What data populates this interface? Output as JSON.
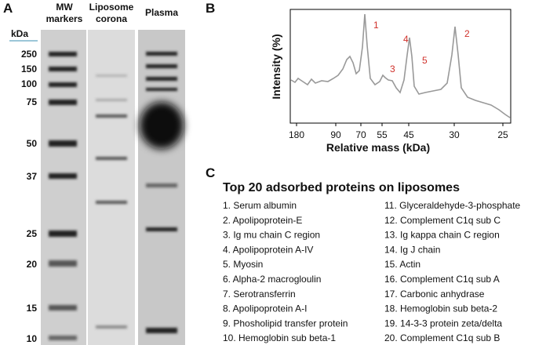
{
  "panel_a": {
    "label": "A",
    "lanes": [
      [
        "MW",
        "markers"
      ],
      [
        "Liposome",
        "corona"
      ],
      [
        "Plasma"
      ]
    ],
    "unit": "kDa",
    "markers": [
      "250",
      "150",
      "100",
      "75",
      "50",
      "37",
      "25",
      "20",
      "15",
      "10"
    ]
  },
  "panel_b": {
    "label": "B",
    "y_label": "Intensity (%)",
    "x_label": "Relative mass (kDa)",
    "x_ticks": [
      "180",
      "90",
      "70",
      "55",
      "45",
      "30",
      "25"
    ],
    "peaks": [
      "1",
      "2",
      "3",
      "4",
      "5"
    ]
  },
  "panel_c": {
    "label": "C",
    "title": "Top 20 adsorbed proteins on liposomes",
    "items": [
      "1. Serum albumin",
      "2. Apolipoprotein-E",
      "3. Ig mu chain C region",
      "4. Apolipoprotein A-IV",
      "5. Myosin",
      "6. Alpha-2 macrogloulin",
      "7. Serotransferrin",
      "8. Apolipoprotein A-I",
      "9. Phosholipid transfer protein",
      "10. Hemoglobin sub beta-1",
      "11. Glyceraldehyde-3-phosphate",
      "12. Complement C1q sub C",
      "13. Ig kappa chain C region",
      "14. Ig J chain",
      "15. Actin",
      "16. Complement C1q sub A",
      "17. Carbonic anhydrase",
      "18. Hemoglobin sub beta-2",
      "19. 14-3-3 protein zeta/delta",
      "20. Complement C1q sub B"
    ]
  }
}
